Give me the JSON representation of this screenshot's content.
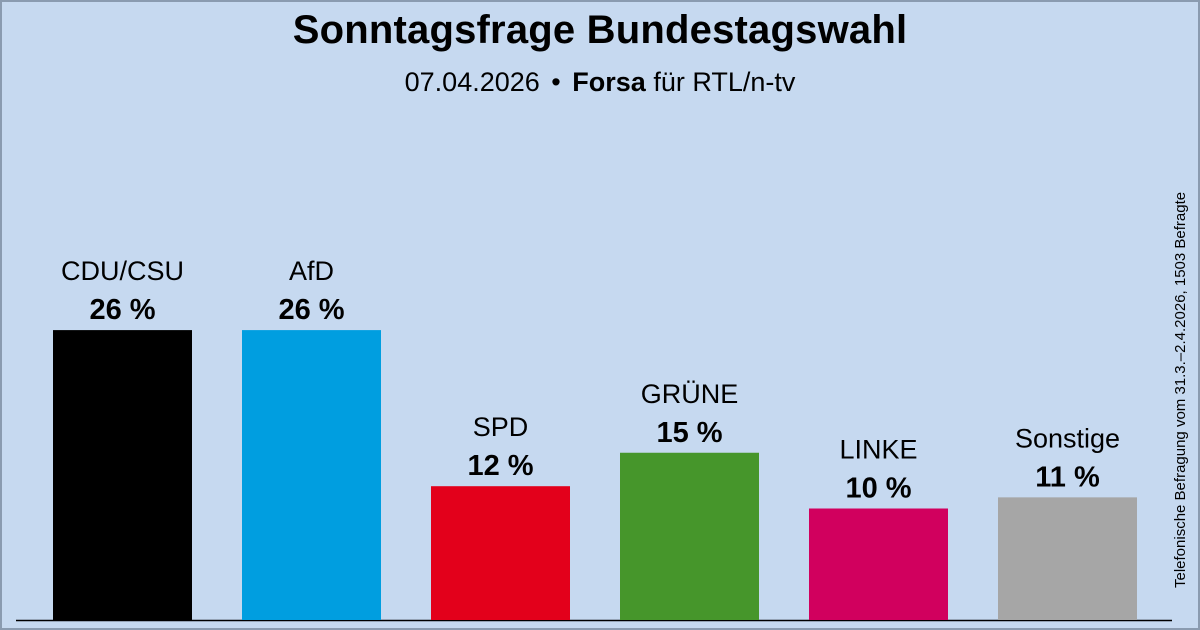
{
  "header": {
    "title": "Sonntagsfrage Bundestagswahl",
    "date": "07.04.2026",
    "bullet": "•",
    "institute": "Forsa",
    "client": "für RTL/n-tv"
  },
  "side_note": "Telefonische Befragung vom 31.3.–2.4.2026, 1503 Befragte",
  "chart_data": {
    "type": "bar",
    "title": "Sonntagsfrage Bundestagswahl",
    "xlabel": "",
    "ylabel": "",
    "categories": [
      "CDU/CSU",
      "AfD",
      "SPD",
      "GRÜNE",
      "LINKE",
      "Sonstige"
    ],
    "values": [
      26,
      26,
      12,
      15,
      10,
      11
    ],
    "value_labels": [
      "26 %",
      "26 %",
      "12 %",
      "15 %",
      "10 %",
      "11 %"
    ],
    "colors": [
      "#000000",
      "#009ee0",
      "#e3001b",
      "#46962b",
      "#d1005e",
      "#a6a6a6"
    ],
    "ylim": [
      0,
      40
    ],
    "grid": false,
    "legend": "none"
  }
}
